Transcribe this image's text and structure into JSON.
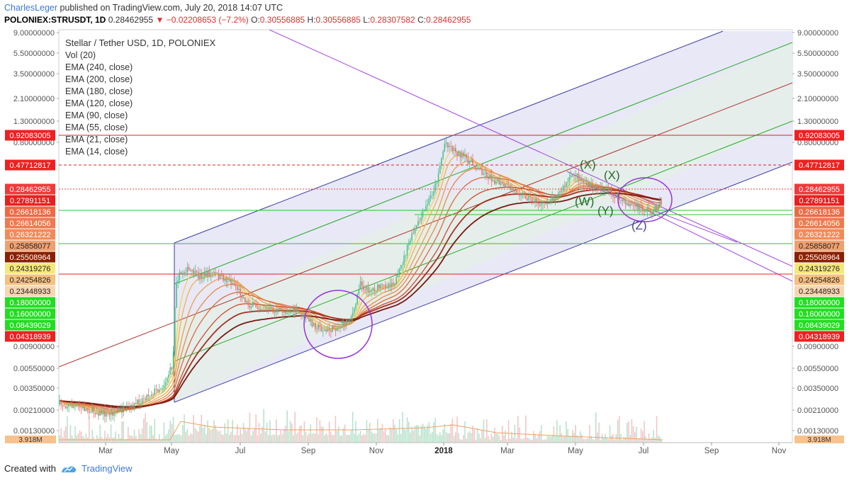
{
  "header": {
    "author": "CharlesLeger",
    "published_text": "published on TradingView.com, July 20, 2018 14:07 UTC",
    "symbol": "POLONIEX:STRUSDT, 1D",
    "last_price": "0.28462955",
    "change_arrow": "▼",
    "change": "−0.02208653 (−7.2%)",
    "open_label": "O:",
    "open": "0.30556885",
    "high_label": "H:",
    "high": "0.30556885",
    "low_label": "L:",
    "low": "0.28307582",
    "close_label": "C:",
    "close": "0.28462955"
  },
  "legend": {
    "title": "Stellar / Tether USD, 1D, POLONIEX",
    "indicators": [
      "Vol (20)",
      "EMA (240, close)",
      "EMA (200, close)",
      "EMA (180, close)",
      "EMA (120, close)",
      "EMA (90, close)",
      "EMA (55, close)",
      "EMA (21, close)",
      "EMA (14, close)"
    ]
  },
  "footer": {
    "created_with": "Created with",
    "brand": "TradingView"
  },
  "chart_data": {
    "type": "candlestick-log",
    "x_ticks": [
      "Mar",
      "May",
      "Jul",
      "Sep",
      "Nov",
      "2018",
      "Mar",
      "May",
      "Jul",
      "Sep",
      "Nov"
    ],
    "y_scale_labels": [
      "9.00000000",
      "5.50000000",
      "3.50000000",
      "2.10000000",
      "1.30000000",
      "0.80000000",
      "0.00900000",
      "0.00550000",
      "0.00350000",
      "0.00210000",
      "0.00130000"
    ],
    "volume_label": "3.918M",
    "price_tags": [
      {
        "text": "0.92083005",
        "color": "#ef2020"
      },
      {
        "text": "0.47712817",
        "color": "#ef2020"
      },
      {
        "text": "0.28462955",
        "color": "#ef3a3a"
      },
      {
        "text": "0.27891151",
        "color": "#e62020"
      },
      {
        "text": "0.26618136",
        "color": "#ee6a45"
      },
      {
        "text": "0.26614056",
        "color": "#ee7a50"
      },
      {
        "text": "0.26321222",
        "color": "#f08a5a"
      },
      {
        "text": "0.25858077",
        "color": "#f0a070"
      },
      {
        "text": "0.25508964",
        "color": "#8b2000"
      },
      {
        "text": "0.24319276",
        "color": "#f5e87a"
      },
      {
        "text": "0.24254826",
        "color": "#f5c080"
      },
      {
        "text": "0.23448933",
        "color": "#f9d5b0"
      },
      {
        "text": "0.18000000",
        "color": "#22dd22"
      },
      {
        "text": "0.16000000",
        "color": "#22dd22"
      },
      {
        "text": "0.08439029",
        "color": "#22dd22"
      },
      {
        "text": "0.04318939",
        "color": "#ef2020"
      }
    ],
    "annotations": [
      "(X)",
      "(X)",
      "(W)",
      "(Y)",
      "(Z)"
    ],
    "colors": {
      "channel": "#3a3aa0",
      "mid": "#b03030",
      "inner": "#22aa22",
      "fan": "#a040e0"
    }
  }
}
